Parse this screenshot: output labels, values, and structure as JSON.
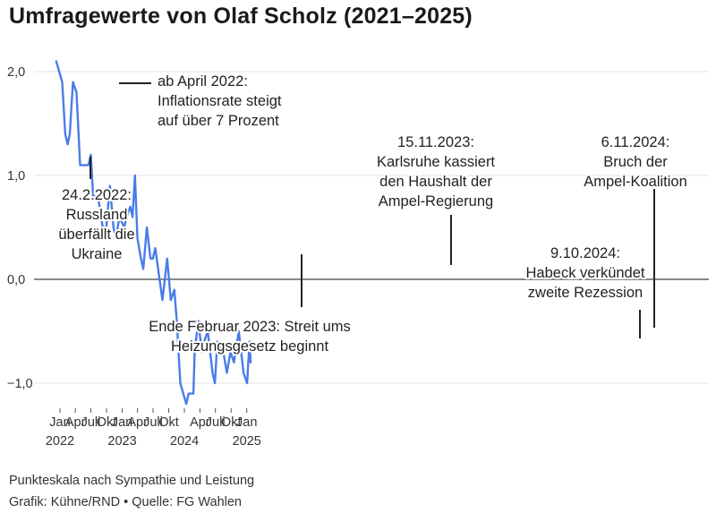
{
  "chart_data": {
    "type": "line",
    "title": "Umfragewerte von Olaf Scholz (2021–2025)",
    "subtitle_note": "Punkteskala nach Sympathie und Leistung",
    "credit": "Grafik: Kühne/RND • Quelle: FG Wahlen",
    "ylim": [
      -1.2,
      2.15
    ],
    "xlim": [
      "2021-11-20",
      "2025-02-15"
    ],
    "line_color": "#4a7ce8",
    "zero_line_color": "#888888",
    "y_ticks": [
      {
        "value": 2.0,
        "label": "2,0"
      },
      {
        "value": 1.0,
        "label": "1,0"
      },
      {
        "value": 0.0,
        "label": "0,0"
      },
      {
        "value": -1.0,
        "label": "−1,0"
      }
    ],
    "x_ticks": [
      {
        "date": "2022-01-01",
        "label": "Jan",
        "year": "2022"
      },
      {
        "date": "2022-04-01",
        "label": "Apr",
        "year": ""
      },
      {
        "date": "2022-07-01",
        "label": "Juli",
        "year": ""
      },
      {
        "date": "2022-10-01",
        "label": "Okt",
        "year": ""
      },
      {
        "date": "2023-01-01",
        "label": "Jan",
        "year": "2023"
      },
      {
        "date": "2023-04-01",
        "label": "Apr",
        "year": ""
      },
      {
        "date": "2023-07-01",
        "label": "Juli",
        "year": ""
      },
      {
        "date": "2023-10-01",
        "label": "Okt",
        "year": ""
      },
      {
        "date": "2024-01-01",
        "label": "",
        "year": "2024"
      },
      {
        "date": "2024-04-01",
        "label": "Apr",
        "year": ""
      },
      {
        "date": "2024-07-01",
        "label": "Juli",
        "year": ""
      },
      {
        "date": "2024-10-01",
        "label": "Okt",
        "year": ""
      },
      {
        "date": "2025-01-01",
        "label": "Jan",
        "year": "2025"
      }
    ],
    "series": [
      {
        "points": [
          {
            "x": "2021-12-10",
            "y": 2.1
          },
          {
            "x": "2022-01-14",
            "y": 1.9
          },
          {
            "x": "2022-02-01",
            "y": 1.4
          },
          {
            "x": "2022-02-15",
            "y": 1.3
          },
          {
            "x": "2022-02-28",
            "y": 1.4
          },
          {
            "x": "2022-03-18",
            "y": 1.9
          },
          {
            "x": "2022-04-08",
            "y": 1.8
          },
          {
            "x": "2022-04-29",
            "y": 1.1
          },
          {
            "x": "2022-05-20",
            "y": 1.1
          },
          {
            "x": "2022-06-17",
            "y": 1.1
          },
          {
            "x": "2022-07-01",
            "y": 1.2
          },
          {
            "x": "2022-07-15",
            "y": 0.8
          },
          {
            "x": "2022-08-12",
            "y": 0.8
          },
          {
            "x": "2022-09-09",
            "y": 0.5
          },
          {
            "x": "2022-09-30",
            "y": 0.5
          },
          {
            "x": "2022-10-21",
            "y": 0.9
          },
          {
            "x": "2022-11-11",
            "y": 0.5
          },
          {
            "x": "2022-11-25",
            "y": 0.4
          },
          {
            "x": "2022-12-16",
            "y": 0.6
          },
          {
            "x": "2023-01-13",
            "y": 0.5
          },
          {
            "x": "2023-01-27",
            "y": 0.6
          },
          {
            "x": "2023-02-17",
            "y": 0.7
          },
          {
            "x": "2023-03-03",
            "y": 0.6
          },
          {
            "x": "2023-03-17",
            "y": 1.0
          },
          {
            "x": "2023-03-31",
            "y": 0.4
          },
          {
            "x": "2023-04-21",
            "y": 0.2
          },
          {
            "x": "2023-05-05",
            "y": 0.1
          },
          {
            "x": "2023-05-26",
            "y": 0.5
          },
          {
            "x": "2023-06-16",
            "y": 0.2
          },
          {
            "x": "2023-06-30",
            "y": 0.2
          },
          {
            "x": "2023-07-14",
            "y": 0.3
          },
          {
            "x": "2023-08-25",
            "y": -0.2
          },
          {
            "x": "2023-09-22",
            "y": 0.2
          },
          {
            "x": "2023-10-13",
            "y": -0.2
          },
          {
            "x": "2023-11-03",
            "y": -0.1
          },
          {
            "x": "2023-11-17",
            "y": -0.4
          },
          {
            "x": "2023-12-08",
            "y": -1.0
          },
          {
            "x": "2024-01-12",
            "y": -1.2
          },
          {
            "x": "2024-01-26",
            "y": -1.1
          },
          {
            "x": "2024-02-23",
            "y": -1.1
          },
          {
            "x": "2024-03-01",
            "y": -0.7
          },
          {
            "x": "2024-03-22",
            "y": -0.4
          },
          {
            "x": "2024-04-12",
            "y": -0.7
          },
          {
            "x": "2024-04-26",
            "y": -0.6
          },
          {
            "x": "2024-05-17",
            "y": -0.5
          },
          {
            "x": "2024-06-14",
            "y": -0.9
          },
          {
            "x": "2024-06-28",
            "y": -1.0
          },
          {
            "x": "2024-07-12",
            "y": -0.6
          },
          {
            "x": "2024-08-16",
            "y": -0.7
          },
          {
            "x": "2024-09-06",
            "y": -0.9
          },
          {
            "x": "2024-09-27",
            "y": -0.7
          },
          {
            "x": "2024-10-18",
            "y": -0.8
          },
          {
            "x": "2024-11-15",
            "y": -0.5
          },
          {
            "x": "2024-12-13",
            "y": -0.9
          },
          {
            "x": "2025-01-03",
            "y": -1.0
          },
          {
            "x": "2025-01-17",
            "y": -0.6
          },
          {
            "x": "2025-01-24",
            "y": -0.8
          }
        ]
      }
    ],
    "annotations": [
      {
        "lines": [
          "ab April 2022:",
          "Inflationsrate steigt",
          "auf über 7 Prozent"
        ]
      },
      {
        "lines": [
          "24.2.2022:",
          "Russland",
          "überfällt die",
          "Ukraine"
        ]
      },
      {
        "lines": [
          "Ende Februar 2023: Streit ums",
          "Heizungsgesetz beginnt"
        ]
      },
      {
        "lines": [
          "15.11.2023:",
          "Karlsruhe kassiert",
          "den Haushalt der",
          "Ampel-Regierung"
        ]
      },
      {
        "lines": [
          "6.11.2024:",
          "Bruch der",
          "Ampel-Koalition"
        ]
      },
      {
        "lines": [
          "9.10.2024:",
          "Habeck verkündet",
          "zweite Rezession"
        ]
      }
    ]
  }
}
